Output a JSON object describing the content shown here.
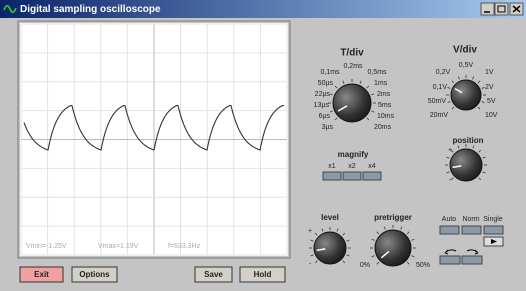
{
  "window": {
    "title": "Digital sampling oscilloscope"
  },
  "screen": {
    "readouts": [
      "Vmin=-1.25V",
      "Vmax=1.19V",
      "f=533.3Hz"
    ]
  },
  "tdiv": {
    "label": "T/div",
    "scale": [
      "0,1ms",
      "0,2ms",
      "0,5ms",
      "50µs",
      "1ms",
      "22µs",
      "2ms",
      "13µs",
      "5ms",
      "6µs",
      "10ms",
      "3µs",
      "20ms"
    ]
  },
  "vdiv": {
    "label": "V/div",
    "scale": [
      "0,2V",
      "0,5V",
      "1V",
      "0,1V",
      "2V",
      "50mV",
      "5V",
      "20mV",
      "10V"
    ]
  },
  "magnify": {
    "label": "magnify",
    "options": [
      "x1",
      "x2",
      "x4"
    ]
  },
  "position": {
    "label": "position"
  },
  "level": {
    "label": "level"
  },
  "pretrigger": {
    "label": "pretrigger",
    "min": "0%",
    "max": "50%"
  },
  "mode": {
    "options": [
      "Auto",
      "Norm",
      "Single"
    ]
  },
  "buttons": [
    "Exit",
    "Options",
    "Save",
    "Hold"
  ]
}
